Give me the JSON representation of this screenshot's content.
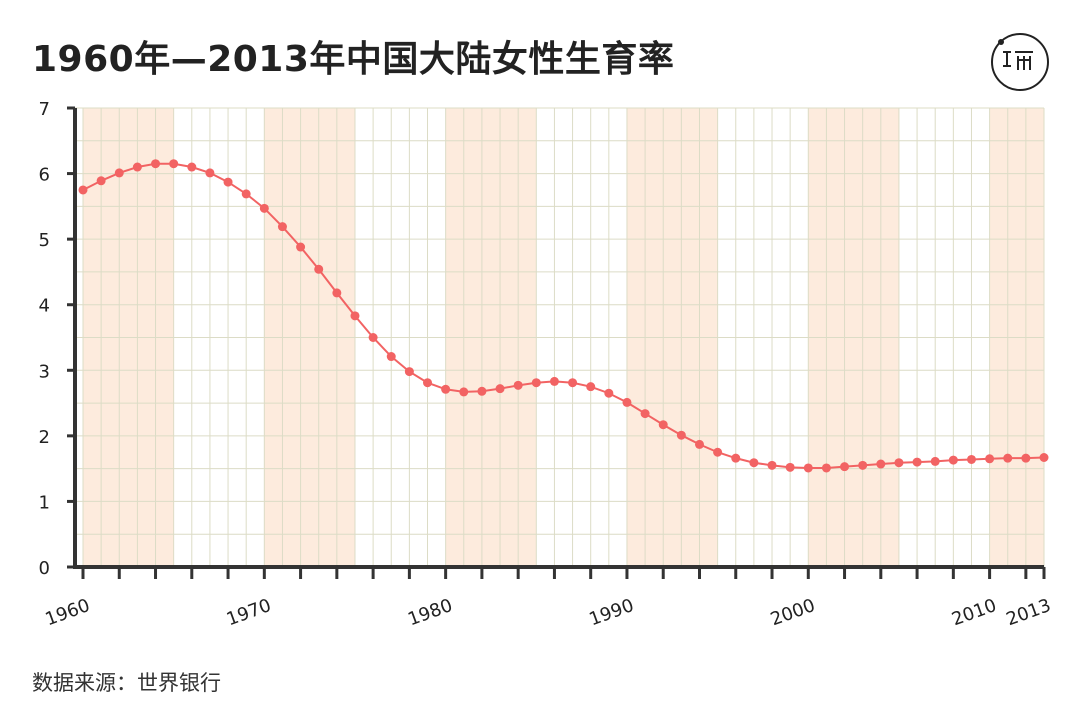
{
  "header": {
    "title": "1960年—2013年中国大陆女性生育率"
  },
  "footer": {
    "source": "数据来源：世界银行"
  },
  "colors": {
    "line": "#F26363",
    "band": "#FDEBDD",
    "grid": "#DCDCC6",
    "axis": "#333333",
    "text": "#222222"
  },
  "chart_data": {
    "type": "line",
    "title": "1960年—2013年中国大陆女性生育率",
    "xlabel": "",
    "ylabel": "",
    "xlim": [
      1960,
      2013
    ],
    "ylim": [
      0,
      7
    ],
    "yticks": [
      0,
      1,
      2,
      3,
      4,
      5,
      6,
      7
    ],
    "xtick_labels": [
      1960,
      1970,
      1980,
      1990,
      2000,
      2010,
      2013
    ],
    "grid": true,
    "shaded_bands": [
      [
        1960,
        1965
      ],
      [
        1970,
        1975
      ],
      [
        1980,
        1985
      ],
      [
        1990,
        1995
      ],
      [
        2000,
        2005
      ],
      [
        2010,
        2013
      ]
    ],
    "x": [
      1960,
      1961,
      1962,
      1963,
      1964,
      1965,
      1966,
      1967,
      1968,
      1969,
      1970,
      1971,
      1972,
      1973,
      1974,
      1975,
      1976,
      1977,
      1978,
      1979,
      1980,
      1981,
      1982,
      1983,
      1984,
      1985,
      1986,
      1987,
      1988,
      1989,
      1990,
      1991,
      1992,
      1993,
      1994,
      1995,
      1996,
      1997,
      1998,
      1999,
      2000,
      2001,
      2002,
      2003,
      2004,
      2005,
      2006,
      2007,
      2008,
      2009,
      2010,
      2011,
      2012,
      2013
    ],
    "series": [
      {
        "values": [
          5.75,
          5.89,
          6.01,
          6.1,
          6.15,
          6.15,
          6.1,
          6.01,
          5.87,
          5.69,
          5.47,
          5.19,
          4.88,
          4.54,
          4.18,
          3.83,
          3.5,
          3.21,
          2.98,
          2.81,
          2.71,
          2.67,
          2.68,
          2.72,
          2.77,
          2.81,
          2.83,
          2.81,
          2.75,
          2.65,
          2.51,
          2.34,
          2.17,
          2.01,
          1.87,
          1.75,
          1.66,
          1.59,
          1.55,
          1.52,
          1.51,
          1.51,
          1.53,
          1.55,
          1.57,
          1.59,
          1.6,
          1.61,
          1.63,
          1.64,
          1.65,
          1.66,
          1.66,
          1.67
        ]
      }
    ]
  }
}
